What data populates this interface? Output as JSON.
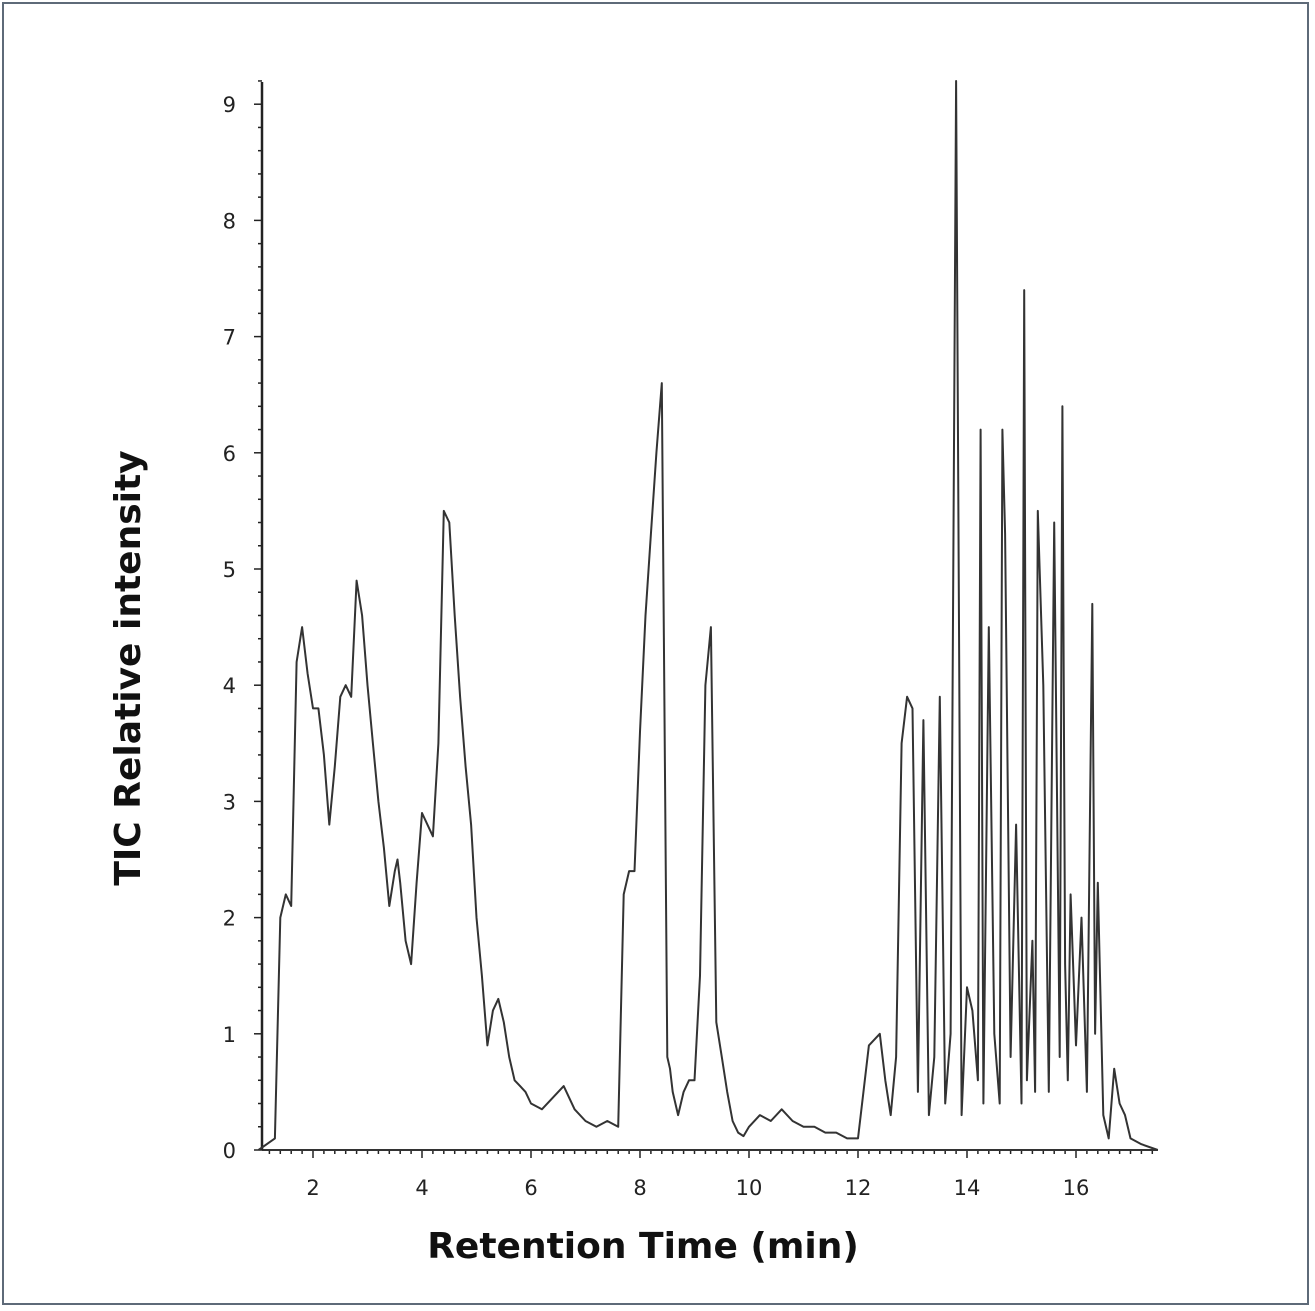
{
  "chart_data": {
    "type": "line",
    "xlabel": "Retention Time (min)",
    "ylabel": "TIC Relative intensity",
    "xlim": [
      1.0,
      17.5
    ],
    "ylim": [
      0,
      9.2
    ],
    "xticks": [
      2,
      4,
      6,
      8,
      10,
      12,
      14,
      16
    ],
    "yticks": [
      0,
      1,
      2,
      3,
      4,
      5,
      6,
      7,
      8,
      9
    ],
    "grid": false,
    "line_color": "#333333",
    "series": [
      {
        "x": [
          1.0,
          1.3,
          1.4,
          1.5,
          1.6,
          1.7,
          1.8,
          1.9,
          2.0,
          2.1,
          2.2,
          2.3,
          2.4,
          2.5,
          2.6,
          2.7,
          2.8,
          2.9,
          3.0,
          3.1,
          3.2,
          3.3,
          3.4,
          3.5,
          3.55,
          3.6,
          3.7,
          3.8,
          3.9,
          4.0,
          4.1,
          4.2,
          4.3,
          4.4,
          4.5,
          4.6,
          4.7,
          4.8,
          4.9,
          5.0,
          5.1,
          5.2,
          5.3,
          5.4,
          5.5,
          5.6,
          5.7,
          5.8,
          5.9,
          6.0,
          6.2,
          6.4,
          6.6,
          6.8,
          7.0,
          7.2,
          7.4,
          7.6,
          7.7,
          7.8,
          7.9,
          8.0,
          8.1,
          8.2,
          8.3,
          8.4,
          8.5,
          8.55,
          8.6,
          8.7,
          8.8,
          8.9,
          9.0,
          9.1,
          9.2,
          9.3,
          9.4,
          9.5,
          9.6,
          9.7,
          9.8,
          9.9,
          10.0,
          10.2,
          10.4,
          10.6,
          10.8,
          11.0,
          11.2,
          11.4,
          11.6,
          11.8,
          12.0,
          12.2,
          12.4,
          12.5,
          12.6,
          12.7,
          12.8,
          12.9,
          13.0,
          13.1,
          13.2,
          13.3,
          13.4,
          13.5,
          13.6,
          13.7,
          13.8,
          13.9,
          14.0,
          14.1,
          14.2,
          14.25,
          14.3,
          14.4,
          14.5,
          14.6,
          14.65,
          14.7,
          14.8,
          14.9,
          15.0,
          15.05,
          15.1,
          15.2,
          15.25,
          15.3,
          15.4,
          15.5,
          15.6,
          15.7,
          15.75,
          15.8,
          15.85,
          15.9,
          16.0,
          16.1,
          16.2,
          16.3,
          16.35,
          16.4,
          16.5,
          16.6,
          16.7,
          16.8,
          16.9,
          17.0,
          17.2,
          17.5
        ],
        "y": [
          0.0,
          0.1,
          2.0,
          2.2,
          2.1,
          4.2,
          4.5,
          4.1,
          3.8,
          3.8,
          3.4,
          2.8,
          3.3,
          3.9,
          4.0,
          3.9,
          4.9,
          4.6,
          4.0,
          3.5,
          3.0,
          2.6,
          2.1,
          2.4,
          2.5,
          2.3,
          1.8,
          1.6,
          2.3,
          2.9,
          2.8,
          2.7,
          3.5,
          5.5,
          5.4,
          4.6,
          3.9,
          3.3,
          2.8,
          2.0,
          1.5,
          0.9,
          1.2,
          1.3,
          1.1,
          0.8,
          0.6,
          0.55,
          0.5,
          0.4,
          0.35,
          0.45,
          0.55,
          0.35,
          0.25,
          0.2,
          0.25,
          0.2,
          2.2,
          2.4,
          2.4,
          3.6,
          4.6,
          5.3,
          6.0,
          6.6,
          0.8,
          0.7,
          0.5,
          0.3,
          0.5,
          0.6,
          0.6,
          1.5,
          4.0,
          4.5,
          1.1,
          0.8,
          0.5,
          0.25,
          0.15,
          0.12,
          0.2,
          0.3,
          0.25,
          0.35,
          0.25,
          0.2,
          0.2,
          0.15,
          0.15,
          0.1,
          0.1,
          0.9,
          1.0,
          0.6,
          0.3,
          0.8,
          3.5,
          3.9,
          3.8,
          0.5,
          3.7,
          0.3,
          0.8,
          3.9,
          0.4,
          1.0,
          9.2,
          0.3,
          1.4,
          1.2,
          0.6,
          6.2,
          0.4,
          4.5,
          1.0,
          0.4,
          6.2,
          5.3,
          0.8,
          2.8,
          0.4,
          7.4,
          0.6,
          1.8,
          0.5,
          5.5,
          4.0,
          0.5,
          5.4,
          0.8,
          6.4,
          1.6,
          0.6,
          2.2,
          0.9,
          2.0,
          0.5,
          4.7,
          1.0,
          2.3,
          0.3,
          0.1,
          0.7,
          0.4,
          0.3,
          0.1,
          0.05,
          0.0
        ]
      }
    ]
  }
}
